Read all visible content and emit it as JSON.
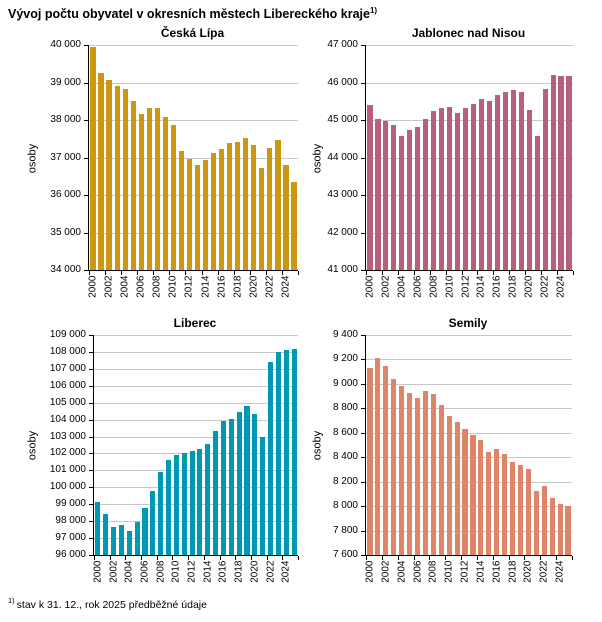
{
  "page": {
    "title": "Vývoj počtu obyvatel v okresních městech Libereckého kraje",
    "title_note_marker": "1)",
    "footnote_marker": "1)",
    "footnote": "stav k 31. 12., rok 2025 předběžné údaje"
  },
  "chart_data": [
    {
      "type": "bar",
      "title": "Česká Lípa",
      "ylabel": "osoby",
      "bar_color": "#CC9810",
      "grid": true,
      "legend": "none",
      "ylim": [
        34000,
        40000
      ],
      "ytick_step": 1000,
      "xtick_label_interval": 2,
      "years": [
        2000,
        2001,
        2002,
        2003,
        2004,
        2005,
        2006,
        2007,
        2008,
        2009,
        2010,
        2011,
        2012,
        2013,
        2014,
        2015,
        2016,
        2017,
        2018,
        2019,
        2020,
        2021,
        2022,
        2023,
        2024,
        2025
      ],
      "values": [
        39950,
        39250,
        39080,
        38900,
        38820,
        38500,
        38170,
        38310,
        38310,
        38080,
        37870,
        37170,
        36950,
        36800,
        36930,
        37130,
        37230,
        37400,
        37420,
        37520,
        37340,
        36720,
        37250,
        37460,
        36800,
        36360
      ]
    },
    {
      "type": "bar",
      "title": "Jablonec nad Nisou",
      "ylabel": "osoby",
      "bar_color": "#B85F7E",
      "grid": true,
      "legend": "none",
      "ylim": [
        41000,
        47000
      ],
      "ytick_step": 1000,
      "xtick_label_interval": 2,
      "years": [
        2000,
        2001,
        2002,
        2003,
        2004,
        2005,
        2006,
        2007,
        2008,
        2009,
        2010,
        2011,
        2012,
        2013,
        2014,
        2015,
        2016,
        2017,
        2018,
        2019,
        2020,
        2021,
        2022,
        2023,
        2024,
        2025
      ],
      "values": [
        45410,
        45030,
        44980,
        44860,
        44570,
        44730,
        44810,
        45030,
        45230,
        45320,
        45340,
        45190,
        45310,
        45440,
        45570,
        45500,
        45670,
        45760,
        45800,
        45740,
        45280,
        44580,
        45820,
        46210,
        46170,
        46180
      ]
    },
    {
      "type": "bar",
      "title": "Liberec",
      "ylabel": "osoby",
      "bar_color": "#0099B2",
      "grid": true,
      "legend": "none",
      "ylim": [
        96000,
        109000
      ],
      "ytick_step": 1000,
      "xtick_label_interval": 2,
      "years": [
        2000,
        2001,
        2002,
        2003,
        2004,
        2005,
        2006,
        2007,
        2008,
        2009,
        2010,
        2011,
        2012,
        2013,
        2014,
        2015,
        2016,
        2017,
        2018,
        2019,
        2020,
        2021,
        2022,
        2023,
        2024,
        2025
      ],
      "values": [
        99150,
        98400,
        97680,
        97780,
        97390,
        97950,
        98800,
        99800,
        100890,
        101610,
        101900,
        102000,
        102140,
        102250,
        102560,
        103350,
        103920,
        104050,
        104480,
        104820,
        104350,
        102950,
        107400,
        107980,
        108100,
        108200
      ]
    },
    {
      "type": "bar",
      "title": "Semily",
      "ylabel": "osoby",
      "bar_color": "#DD8566",
      "grid": true,
      "legend": "none",
      "ylim": [
        7600,
        9400
      ],
      "ytick_step": 200,
      "xtick_label_interval": 2,
      "years": [
        2000,
        2001,
        2002,
        2003,
        2004,
        2005,
        2006,
        2007,
        2008,
        2009,
        2010,
        2011,
        2012,
        2013,
        2014,
        2015,
        2016,
        2017,
        2018,
        2019,
        2020,
        2021,
        2022,
        2023,
        2024,
        2025
      ],
      "values": [
        9130,
        9215,
        9150,
        9040,
        8980,
        8925,
        8885,
        8940,
        8915,
        8830,
        8740,
        8685,
        8630,
        8580,
        8545,
        8445,
        8470,
        8425,
        8365,
        8340,
        8300,
        8125,
        8165,
        8070,
        8020,
        8000
      ]
    }
  ]
}
